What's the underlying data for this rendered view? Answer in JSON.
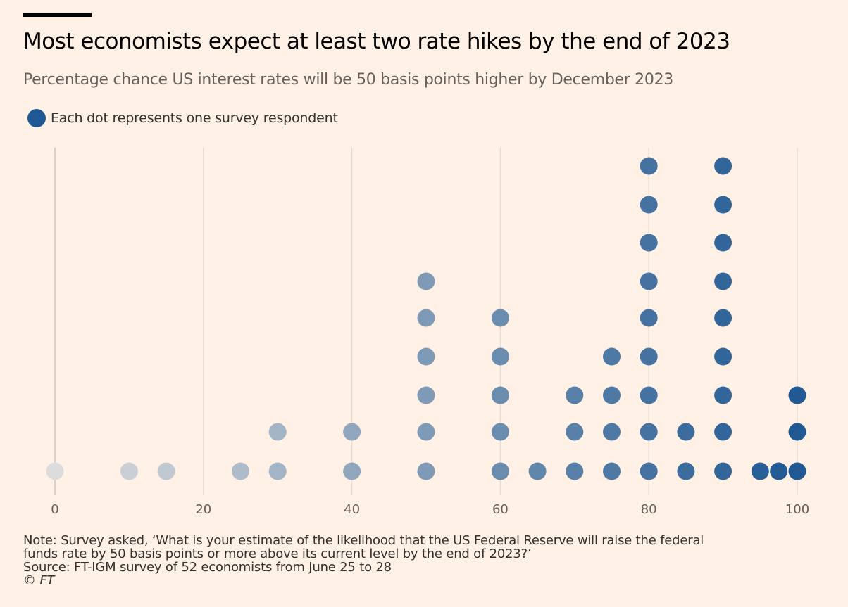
{
  "title": "Most economists expect at least two rate hikes by the end of 2023",
  "subtitle": "Percentage chance US interest rates will be 50 basis points higher by December 2023",
  "legend": {
    "label": "Each dot represents one survey respondent",
    "color": "#1f5892"
  },
  "notes": {
    "note_line1": "Note: Survey asked, ‘What is your estimate of the likelihood that the US Federal Reserve will raise the federal",
    "note_line2": "funds rate by 50 basis points or more above its current level by the end of 2023?’",
    "source": "Source: FT-IGM survey of 52 economists from June 25 to 28",
    "credit": "© FT"
  },
  "chart_data": {
    "type": "dot-histogram",
    "title": "Most economists expect at least two rate hikes by the end of 2023",
    "subtitle": "Percentage chance US interest rates will be 50 basis points higher by December 2023",
    "xlabel": "",
    "ylabel": "",
    "xlim": [
      0,
      100
    ],
    "x_ticks": [
      0,
      20,
      40,
      60,
      80,
      100
    ],
    "x_tick_labels": [
      "0",
      "20",
      "40",
      "60",
      "80",
      "100"
    ],
    "grid": "vertical",
    "legend": "Each dot represents one survey respondent",
    "color_scale": [
      "#dcdcdc",
      "#1f5892"
    ],
    "respondent_counts": [
      {
        "x": 0,
        "count": 1
      },
      {
        "x": 10,
        "count": 1
      },
      {
        "x": 15,
        "count": 1
      },
      {
        "x": 25,
        "count": 1
      },
      {
        "x": 30,
        "count": 2
      },
      {
        "x": 40,
        "count": 2
      },
      {
        "x": 50,
        "count": 6
      },
      {
        "x": 60,
        "count": 5
      },
      {
        "x": 65,
        "count": 1
      },
      {
        "x": 70,
        "count": 3
      },
      {
        "x": 75,
        "count": 4
      },
      {
        "x": 80,
        "count": 9
      },
      {
        "x": 85,
        "count": 2
      },
      {
        "x": 90,
        "count": 9
      },
      {
        "x": 95,
        "count": 1
      },
      {
        "x": 97.5,
        "count": 1
      },
      {
        "x": 100,
        "count": 3
      }
    ],
    "total_respondents": 52
  }
}
